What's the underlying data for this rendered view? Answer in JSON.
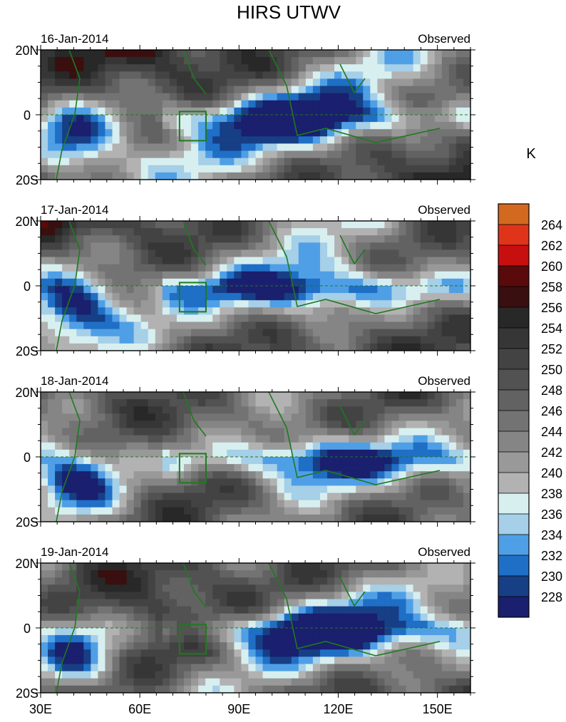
{
  "chart_data": {
    "type": "heatmap",
    "title": "HIRS UTWV",
    "colorbar": {
      "unit": "K",
      "levels": [
        228,
        230,
        232,
        234,
        236,
        238,
        240,
        242,
        244,
        246,
        248,
        250,
        252,
        254,
        256,
        258,
        260,
        262,
        264
      ],
      "colors": [
        "#1a1f6e",
        "#173f86",
        "#1f6fc6",
        "#4f9fe6",
        "#a6cfe8",
        "#d8eff0",
        "#b2b2b2",
        "#999999",
        "#858585",
        "#737373",
        "#626262",
        "#525252",
        "#434343",
        "#363636",
        "#282828",
        "#3a0f0f",
        "#5a0a0a",
        "#c80f0f",
        "#e0341a",
        "#d2691e"
      ]
    },
    "x_axis": {
      "range": [
        30,
        160
      ],
      "ticks": [
        30,
        60,
        90,
        120,
        150
      ],
      "tick_labels": [
        "30E",
        "60E",
        "90E",
        "120E",
        "150E"
      ]
    },
    "y_axis": {
      "range": [
        -20,
        20
      ],
      "ticks": [
        20,
        0,
        -20
      ],
      "tick_labels": [
        "20N",
        "0",
        "20S"
      ]
    },
    "panels": [
      {
        "date": "16-Jan-2014",
        "label": "Observed"
      },
      {
        "date": "17-Jan-2014",
        "label": "Observed"
      },
      {
        "date": "18-Jan-2014",
        "label": "Observed"
      },
      {
        "date": "19-Jan-2014",
        "label": "Observed"
      }
    ]
  }
}
